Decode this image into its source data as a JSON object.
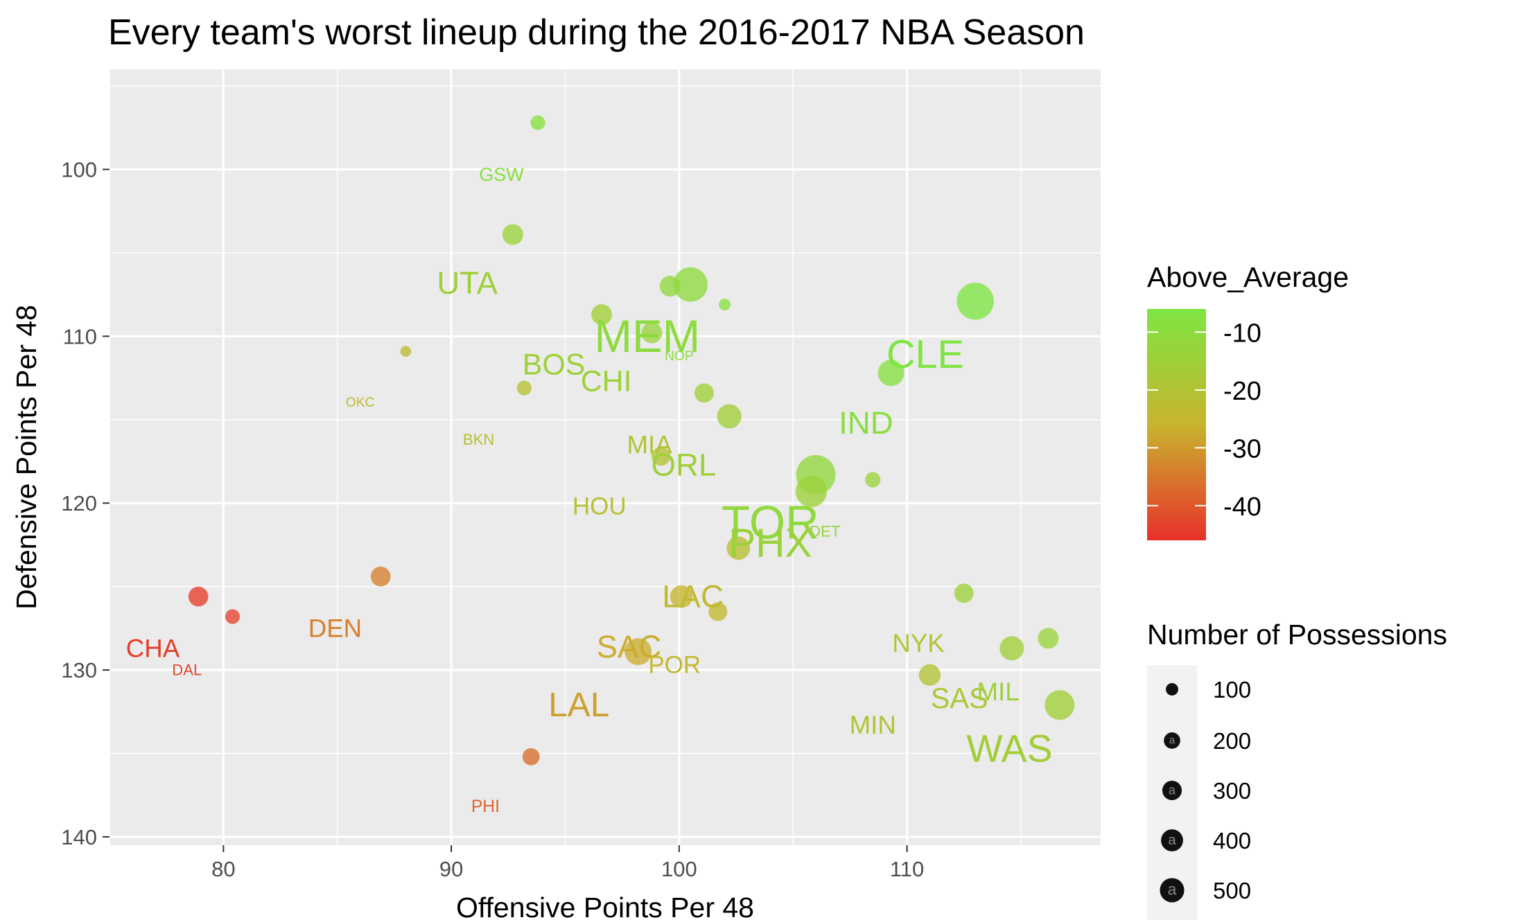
{
  "chart_data": {
    "type": "scatter",
    "title": "Every team's worst lineup during the 2016-2017 NBA Season",
    "xlabel": "Offensive Points Per 48",
    "ylabel": "Defensive Points Per 48",
    "xlim": [
      75,
      118.5
    ],
    "ylim": [
      94,
      140.5
    ],
    "y_reversed": true,
    "x_ticks": [
      80,
      90,
      100,
      110
    ],
    "y_ticks": [
      100,
      110,
      120,
      130,
      140
    ],
    "grid": true,
    "background": "#ebebeb",
    "points": [
      {
        "x": 93.8,
        "y": 97.2,
        "size": 110,
        "above_average": -8
      },
      {
        "x": 92.7,
        "y": 103.9,
        "size": 220,
        "above_average": -13
      },
      {
        "x": 100.5,
        "y": 106.9,
        "size": 600,
        "above_average": -10
      },
      {
        "x": 99.6,
        "y": 107.0,
        "size": 220,
        "above_average": -11
      },
      {
        "x": 102.0,
        "y": 108.1,
        "size": 70,
        "above_average": -8
      },
      {
        "x": 96.6,
        "y": 108.7,
        "size": 220,
        "above_average": -15
      },
      {
        "x": 98.8,
        "y": 109.8,
        "size": 220,
        "above_average": -13
      },
      {
        "x": 88.0,
        "y": 110.9,
        "size": 60,
        "above_average": -23
      },
      {
        "x": 93.2,
        "y": 113.1,
        "size": 110,
        "above_average": -21
      },
      {
        "x": 101.1,
        "y": 113.4,
        "size": 190,
        "above_average": -15
      },
      {
        "x": 102.2,
        "y": 114.8,
        "size": 300,
        "above_average": -15
      },
      {
        "x": 99.2,
        "y": 117.2,
        "size": 180,
        "above_average": -20
      },
      {
        "x": 106.0,
        "y": 118.3,
        "size": 790,
        "above_average": -11
      },
      {
        "x": 105.8,
        "y": 119.3,
        "size": 500,
        "above_average": -14
      },
      {
        "x": 108.5,
        "y": 118.6,
        "size": 120,
        "above_average": -13
      },
      {
        "x": 102.6,
        "y": 122.7,
        "size": 280,
        "above_average": -22
      },
      {
        "x": 112.5,
        "y": 125.4,
        "size": 190,
        "above_average": -14
      },
      {
        "x": 78.9,
        "y": 125.6,
        "size": 200,
        "above_average": -44
      },
      {
        "x": 86.9,
        "y": 124.4,
        "size": 200,
        "above_average": -34
      },
      {
        "x": 80.4,
        "y": 126.8,
        "size": 110,
        "above_average": -43
      },
      {
        "x": 100.1,
        "y": 125.6,
        "size": 260,
        "above_average": -25
      },
      {
        "x": 101.7,
        "y": 126.5,
        "size": 180,
        "above_average": -24
      },
      {
        "x": 98.2,
        "y": 128.9,
        "size": 370,
        "above_average": -27
      },
      {
        "x": 116.2,
        "y": 128.1,
        "size": 220,
        "above_average": -13
      },
      {
        "x": 114.6,
        "y": 128.7,
        "size": 300,
        "above_average": -15
      },
      {
        "x": 111.0,
        "y": 130.3,
        "size": 240,
        "above_average": -20
      },
      {
        "x": 116.7,
        "y": 132.1,
        "size": 450,
        "above_average": -15
      },
      {
        "x": 93.5,
        "y": 135.2,
        "size": 150,
        "above_average": -37
      },
      {
        "x": 113.0,
        "y": 107.9,
        "size": 700,
        "above_average": -5
      },
      {
        "x": 109.3,
        "y": 112.2,
        "size": 350,
        "above_average": -8
      }
    ],
    "team_labels": [
      {
        "team": "GSW",
        "x": 92.2,
        "y": 100.3,
        "size": 60,
        "above_average": -8
      },
      {
        "team": "UTA",
        "x": 90.7,
        "y": 106.8,
        "size": 170,
        "above_average": -15
      },
      {
        "team": "MEM",
        "x": 98.6,
        "y": 110.0,
        "size": 350,
        "above_average": -10
      },
      {
        "team": "NOP",
        "x": 100.0,
        "y": 111.2,
        "size": 30,
        "above_average": -10
      },
      {
        "team": "BOS",
        "x": 94.5,
        "y": 111.7,
        "size": 150,
        "above_average": -15
      },
      {
        "team": "CHI",
        "x": 96.8,
        "y": 112.7,
        "size": 150,
        "above_average": -14
      },
      {
        "team": "OKC",
        "x": 86.0,
        "y": 114.0,
        "size": 30,
        "above_average": -23
      },
      {
        "team": "BKN",
        "x": 91.2,
        "y": 116.2,
        "size": 40,
        "above_average": -21
      },
      {
        "team": "MIA",
        "x": 98.7,
        "y": 116.5,
        "size": 110,
        "above_average": -20
      },
      {
        "team": "ORL",
        "x": 100.2,
        "y": 117.7,
        "size": 170,
        "above_average": -15
      },
      {
        "team": "HOU",
        "x": 96.5,
        "y": 120.2,
        "size": 100,
        "above_average": -21
      },
      {
        "team": "TOR",
        "x": 104.0,
        "y": 121.2,
        "size": 370,
        "above_average": -11
      },
      {
        "team": "PHX",
        "x": 104.0,
        "y": 122.4,
        "size": 280,
        "above_average": -14
      },
      {
        "team": "DET",
        "x": 106.4,
        "y": 121.7,
        "size": 40,
        "above_average": -13
      },
      {
        "team": "CLE",
        "x": 110.8,
        "y": 111.1,
        "size": 270,
        "above_average": -5
      },
      {
        "team": "IND",
        "x": 108.2,
        "y": 115.2,
        "size": 170,
        "above_average": -9
      },
      {
        "team": "LAC",
        "x": 100.6,
        "y": 125.6,
        "size": 170,
        "above_average": -24
      },
      {
        "team": "DEN",
        "x": 84.9,
        "y": 127.5,
        "size": 110,
        "above_average": -34
      },
      {
        "team": "CHA",
        "x": 76.9,
        "y": 128.7,
        "size": 110,
        "above_average": -44
      },
      {
        "team": "DAL",
        "x": 78.4,
        "y": 130.0,
        "size": 40,
        "above_average": -43
      },
      {
        "team": "SAC",
        "x": 97.8,
        "y": 128.6,
        "size": 170,
        "above_average": -27
      },
      {
        "team": "POR",
        "x": 99.8,
        "y": 129.7,
        "size": 100,
        "above_average": -24
      },
      {
        "team": "NYK",
        "x": 110.5,
        "y": 128.4,
        "size": 110,
        "above_average": -20
      },
      {
        "team": "SAS",
        "x": 112.3,
        "y": 131.7,
        "size": 140,
        "above_average": -18
      },
      {
        "team": "MIL",
        "x": 114.0,
        "y": 131.3,
        "size": 110,
        "above_average": -15
      },
      {
        "team": "LAL",
        "x": 95.6,
        "y": 132.1,
        "size": 200,
        "above_average": -29
      },
      {
        "team": "MIN",
        "x": 108.5,
        "y": 133.3,
        "size": 110,
        "above_average": -20
      },
      {
        "team": "WAS",
        "x": 114.5,
        "y": 134.7,
        "size": 250,
        "above_average": -16
      },
      {
        "team": "PHI",
        "x": 91.5,
        "y": 138.2,
        "size": 50,
        "above_average": -38
      }
    ],
    "color_legend": {
      "title": "Above_Average",
      "breaks": [
        -10,
        -20,
        -30,
        -40
      ],
      "range": [
        -46,
        -6
      ],
      "low_color": "#e8302a",
      "mid_color": "#c8b42e",
      "high_color": "#7ee542"
    },
    "size_legend": {
      "title": "Number of Possessions",
      "breaks": [
        100,
        200,
        300,
        400,
        500
      ],
      "key_glyph": "a",
      "key_color": "#111111"
    }
  }
}
